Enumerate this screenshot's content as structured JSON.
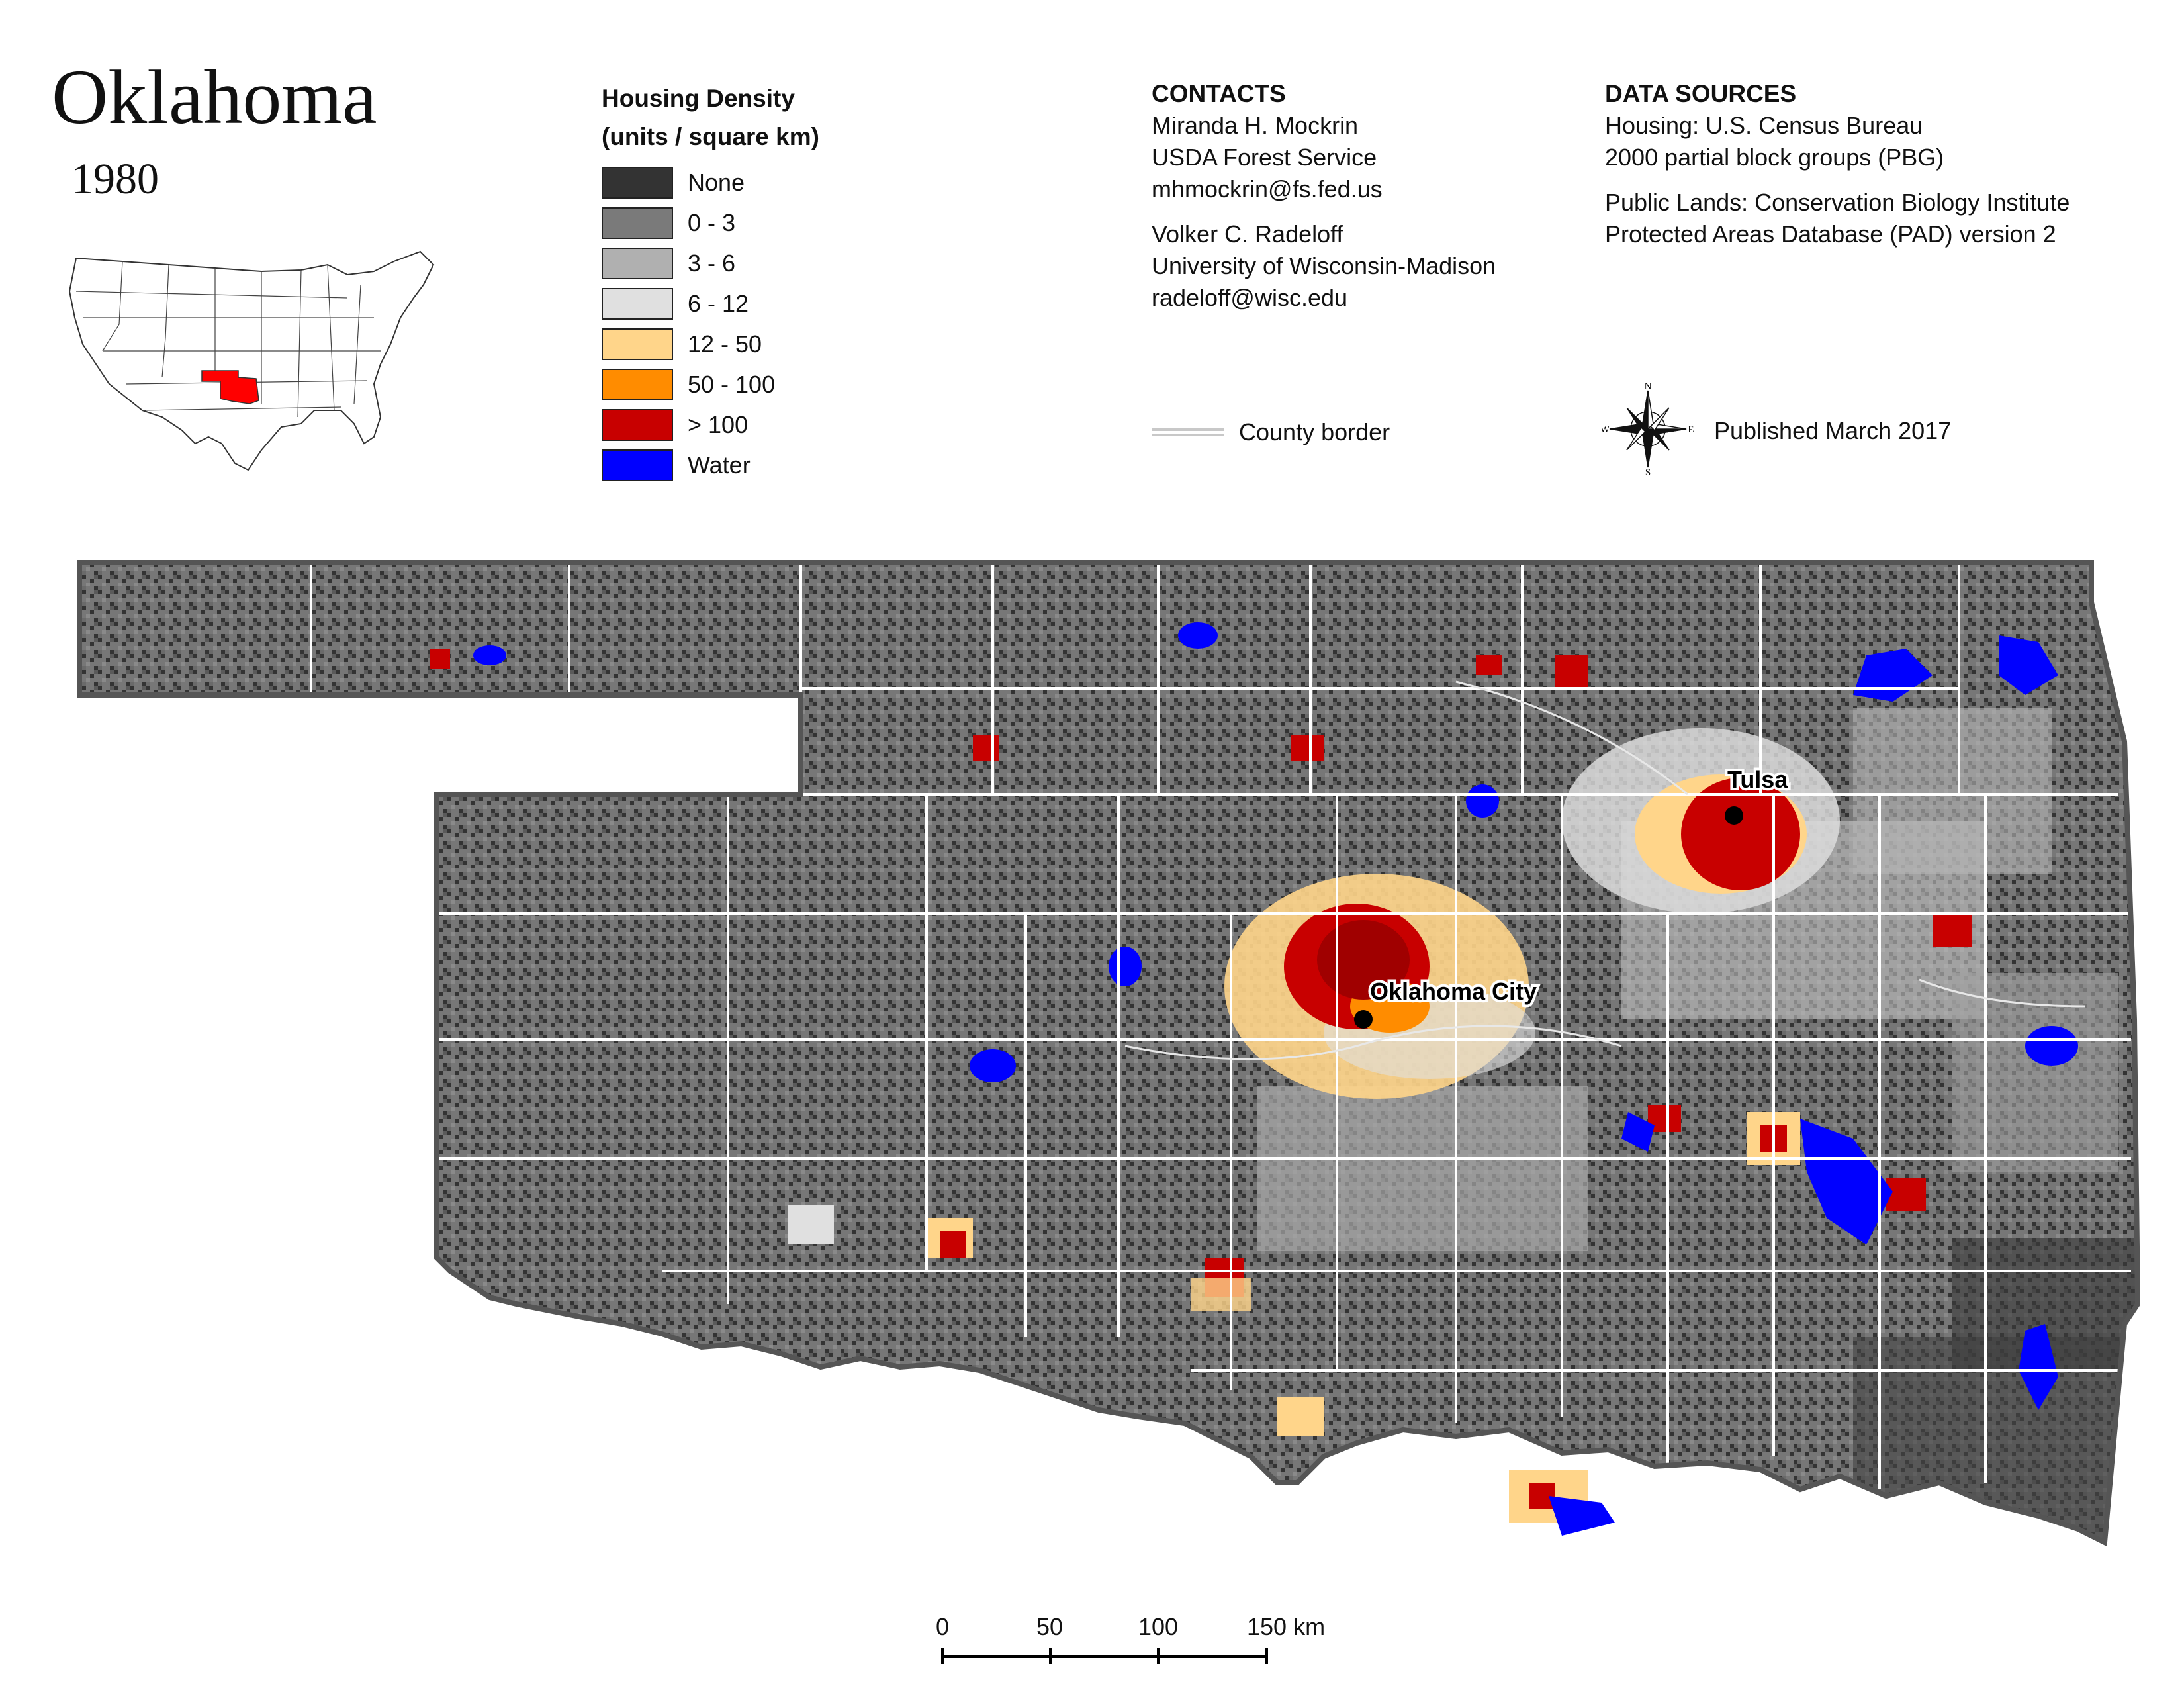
{
  "title": "Oklahoma",
  "year": "1980",
  "legend": {
    "title_line1": "Housing Density",
    "title_line2": "(units / square km)",
    "items": [
      {
        "label": "None",
        "color": "#333333"
      },
      {
        "label": "0 - 3",
        "color": "#7a7a7a"
      },
      {
        "label": "3 - 6",
        "color": "#b0b0b0"
      },
      {
        "label": "6 - 12",
        "color": "#e0e0e0"
      },
      {
        "label": "12 - 50",
        "color": "#ffd58a"
      },
      {
        "label": "50 - 100",
        "color": "#ff8c00"
      },
      {
        "label": "> 100",
        "color": "#c80000"
      },
      {
        "label": "Water",
        "color": "#0000ff"
      }
    ]
  },
  "contacts": {
    "header": "CONTACTS",
    "person1": [
      "Miranda H. Mockrin",
      "USDA Forest Service",
      "mhmockrin@fs.fed.us"
    ],
    "person2": [
      "Volker C. Radeloff",
      "University of Wisconsin-Madison",
      "radeloff@wisc.edu"
    ]
  },
  "data_sources": {
    "header": "DATA SOURCES",
    "housing": [
      "Housing: U.S. Census Bureau",
      "2000 partial block groups (PBG)"
    ],
    "public_lands": [
      "Public Lands: Conservation Biology Institute",
      "Protected Areas Database (PAD) version 2"
    ]
  },
  "county_border_label": "County border",
  "published": "Published March 2017",
  "compass": {
    "n": "N",
    "s": "S",
    "e": "E",
    "w": "W"
  },
  "scale_bar": {
    "labels": [
      "0",
      "50",
      "100",
      "150 km"
    ]
  },
  "cities": [
    {
      "name": "Tulsa"
    },
    {
      "name": "Oklahoma City"
    }
  ],
  "inset": {
    "highlight_color": "#ff0000"
  },
  "colors": {
    "county_line": "#ffffff",
    "state_outline": "#555555"
  }
}
